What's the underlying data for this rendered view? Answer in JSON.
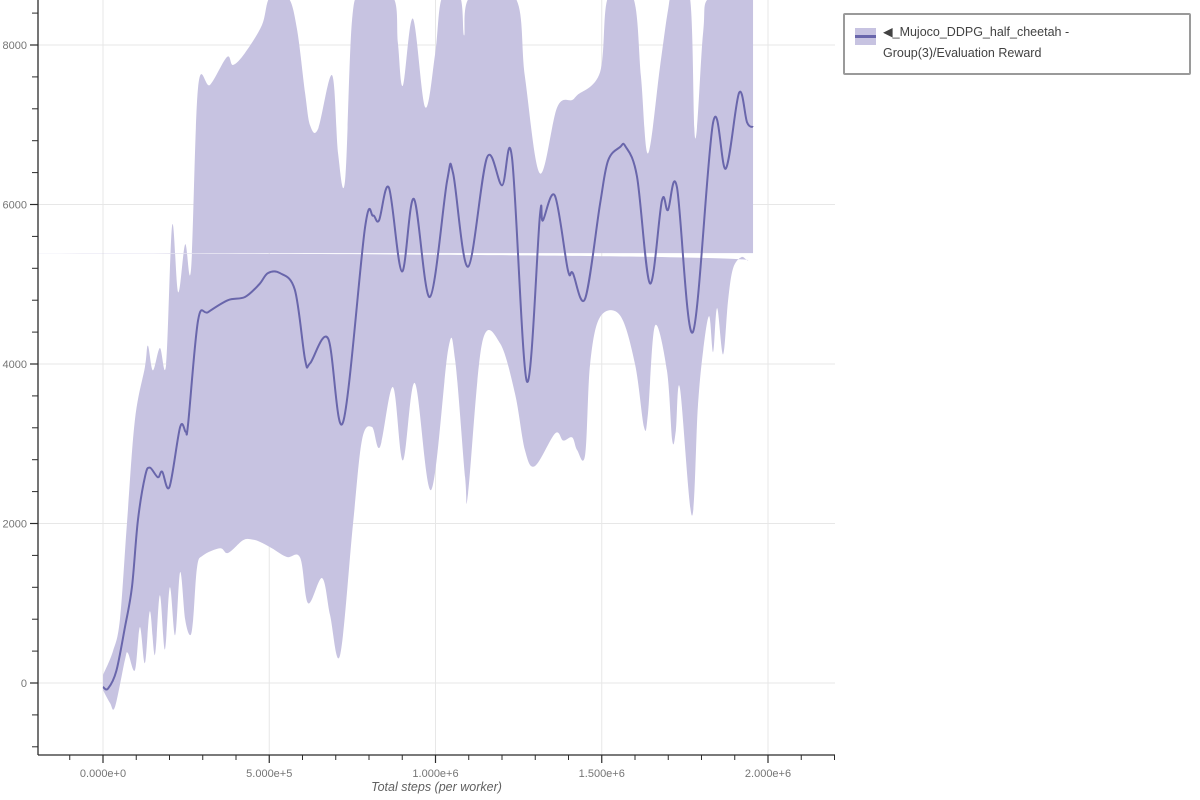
{
  "chart_data": {
    "type": "line",
    "title": "",
    "xlabel": "Total steps (per worker)",
    "ylabel": "",
    "xlim_px_anchor": "x ticks labeled 0 to 2e6",
    "x_ticks": [
      {
        "value": 0,
        "label": "0.000e+0"
      },
      {
        "value": 500000,
        "label": "5.000e+5"
      },
      {
        "value": 1000000,
        "label": "1.000e+6"
      },
      {
        "value": 1500000,
        "label": "1.500e+6"
      },
      {
        "value": 2000000,
        "label": "2.000e+6"
      }
    ],
    "x_minor_tick_step": 100000,
    "y_ticks": [
      {
        "value": 0,
        "label": "0"
      },
      {
        "value": 2000,
        "label": "2000"
      },
      {
        "value": 4000,
        "label": "4000"
      },
      {
        "value": 6000,
        "label": "6000"
      },
      {
        "value": 8000,
        "label": "8000"
      }
    ],
    "y_minor_tick_step": 400,
    "grid": "on",
    "legend_position": "top-right-outside",
    "legend": {
      "marker": "band-with-line",
      "label": "◀_Mujoco_DDPG_half_cheetah - Group(3)/Evaluation Reward"
    },
    "colors": {
      "line": "#6966ab",
      "band": "#c7c3e1",
      "grid": "#e7e7e7",
      "axis": "#2b2b2b",
      "tick_label": "#757575",
      "axis_title": "#616161",
      "legend_text": "#424242",
      "legend_border": "#9a9a9a"
    },
    "series": [
      {
        "name": "◀_Mujoco_DDPG_half_cheetah - Group(3)/Evaluation Reward",
        "mean": [
          [
            0,
            -50
          ],
          [
            15000,
            -70
          ],
          [
            40000,
            150
          ],
          [
            66000,
            700
          ],
          [
            87000,
            1200
          ],
          [
            105000,
            2040
          ],
          [
            127000,
            2600
          ],
          [
            141000,
            2700
          ],
          [
            165000,
            2580
          ],
          [
            178000,
            2650
          ],
          [
            200000,
            2460
          ],
          [
            232000,
            3210
          ],
          [
            249000,
            3150
          ],
          [
            256000,
            3250
          ],
          [
            286000,
            4550
          ],
          [
            316000,
            4650
          ],
          [
            376000,
            4800
          ],
          [
            427000,
            4840
          ],
          [
            470000,
            5000
          ],
          [
            496000,
            5140
          ],
          [
            532000,
            5140
          ],
          [
            577000,
            4930
          ],
          [
            608000,
            4050
          ],
          [
            623000,
            4010
          ],
          [
            677000,
            4320
          ],
          [
            722000,
            3270
          ],
          [
            788000,
            5710
          ],
          [
            812000,
            5860
          ],
          [
            830000,
            5800
          ],
          [
            860000,
            6210
          ],
          [
            899000,
            5160
          ],
          [
            935000,
            6070
          ],
          [
            983000,
            4840
          ],
          [
            1035000,
            6300
          ],
          [
            1053000,
            6390
          ],
          [
            1098000,
            5220
          ],
          [
            1155000,
            6590
          ],
          [
            1200000,
            6240
          ],
          [
            1230000,
            6590
          ],
          [
            1275000,
            3780
          ],
          [
            1314000,
            5860
          ],
          [
            1323000,
            5800
          ],
          [
            1359000,
            6110
          ],
          [
            1398000,
            5180
          ],
          [
            1413000,
            5140
          ],
          [
            1450000,
            4820
          ],
          [
            1495000,
            6010
          ],
          [
            1519000,
            6550
          ],
          [
            1555000,
            6720
          ],
          [
            1571000,
            6730
          ],
          [
            1606000,
            6350
          ],
          [
            1645000,
            5010
          ],
          [
            1681000,
            6050
          ],
          [
            1699000,
            5930
          ],
          [
            1726000,
            6220
          ],
          [
            1774000,
            4400
          ],
          [
            1835000,
            7030
          ],
          [
            1873000,
            6450
          ],
          [
            1913000,
            7400
          ],
          [
            1937000,
            7030
          ],
          [
            1955000,
            6970
          ]
        ],
        "upper": [
          [
            0,
            100
          ],
          [
            30000,
            400
          ],
          [
            51000,
            800
          ],
          [
            72000,
            2000
          ],
          [
            96000,
            3300
          ],
          [
            126000,
            3960
          ],
          [
            135000,
            4230
          ],
          [
            150000,
            3920
          ],
          [
            171000,
            4200
          ],
          [
            190000,
            4000
          ],
          [
            208000,
            5740
          ],
          [
            226000,
            4900
          ],
          [
            247000,
            5500
          ],
          [
            265000,
            5200
          ],
          [
            286000,
            7470
          ],
          [
            322000,
            7500
          ],
          [
            373000,
            7850
          ],
          [
            391000,
            7750
          ],
          [
            427000,
            7900
          ],
          [
            478000,
            8250
          ],
          [
            502000,
            8600
          ],
          [
            556000,
            8600
          ],
          [
            583000,
            8210
          ],
          [
            608000,
            7390
          ],
          [
            623000,
            6990
          ],
          [
            647000,
            6950
          ],
          [
            689000,
            7620
          ],
          [
            707000,
            6640
          ],
          [
            728000,
            6300
          ],
          [
            749000,
            8310
          ],
          [
            779000,
            8600
          ],
          [
            872000,
            8600
          ],
          [
            887000,
            8020
          ],
          [
            902000,
            7490
          ],
          [
            932000,
            8330
          ],
          [
            969000,
            7220
          ],
          [
            999000,
            7890
          ],
          [
            1020000,
            8600
          ],
          [
            1074000,
            8600
          ],
          [
            1086000,
            8120
          ],
          [
            1104000,
            8600
          ],
          [
            1239000,
            8600
          ],
          [
            1269000,
            7600
          ],
          [
            1314000,
            6390
          ],
          [
            1366000,
            7220
          ],
          [
            1411000,
            7310
          ],
          [
            1426000,
            7370
          ],
          [
            1495000,
            7660
          ],
          [
            1519000,
            8600
          ],
          [
            1594000,
            8600
          ],
          [
            1618000,
            7600
          ],
          [
            1639000,
            6640
          ],
          [
            1675000,
            7720
          ],
          [
            1699000,
            8430
          ],
          [
            1712000,
            8600
          ],
          [
            1765000,
            8600
          ],
          [
            1781000,
            6830
          ],
          [
            1805000,
            8160
          ],
          [
            1826000,
            8600
          ],
          [
            1955000,
            8600
          ]
        ],
        "lower": [
          [
            0,
            -90
          ],
          [
            21000,
            -250
          ],
          [
            36000,
            -300
          ],
          [
            66000,
            290
          ],
          [
            75000,
            375
          ],
          [
            96000,
            160
          ],
          [
            111000,
            700
          ],
          [
            126000,
            250
          ],
          [
            141000,
            900
          ],
          [
            156000,
            350
          ],
          [
            171000,
            1100
          ],
          [
            186000,
            420
          ],
          [
            201000,
            1200
          ],
          [
            217000,
            600
          ],
          [
            232000,
            1390
          ],
          [
            247000,
            800
          ],
          [
            262000,
            600
          ],
          [
            271000,
            790
          ],
          [
            283000,
            1455
          ],
          [
            301000,
            1600
          ],
          [
            352000,
            1690
          ],
          [
            376000,
            1630
          ],
          [
            421000,
            1790
          ],
          [
            448000,
            1800
          ],
          [
            472000,
            1770
          ],
          [
            508000,
            1690
          ],
          [
            553000,
            1580
          ],
          [
            593000,
            1570
          ],
          [
            617000,
            1000
          ],
          [
            659000,
            1315
          ],
          [
            683000,
            850
          ],
          [
            713000,
            350
          ],
          [
            752000,
            2000
          ],
          [
            779000,
            3050
          ],
          [
            809000,
            3210
          ],
          [
            833000,
            2960
          ],
          [
            872000,
            3710
          ],
          [
            902000,
            2790
          ],
          [
            938000,
            3760
          ],
          [
            987000,
            2420
          ],
          [
            1038000,
            4180
          ],
          [
            1059000,
            4050
          ],
          [
            1089000,
            2580
          ],
          [
            1098000,
            2380
          ],
          [
            1140000,
            4260
          ],
          [
            1194000,
            4260
          ],
          [
            1239000,
            3630
          ],
          [
            1269000,
            2920
          ],
          [
            1299000,
            2720
          ],
          [
            1360000,
            3130
          ],
          [
            1384000,
            3040
          ],
          [
            1411000,
            3080
          ],
          [
            1426000,
            2920
          ],
          [
            1450000,
            2860
          ],
          [
            1465000,
            4000
          ],
          [
            1495000,
            4590
          ],
          [
            1555000,
            4610
          ],
          [
            1600000,
            4000
          ],
          [
            1627000,
            3210
          ],
          [
            1639000,
            3380
          ],
          [
            1660000,
            4480
          ],
          [
            1696000,
            3920
          ],
          [
            1712000,
            3040
          ],
          [
            1723000,
            3170
          ],
          [
            1735000,
            3700
          ],
          [
            1771000,
            2100
          ],
          [
            1789000,
            3460
          ],
          [
            1805000,
            4170
          ],
          [
            1823000,
            4600
          ],
          [
            1835000,
            4150
          ],
          [
            1847000,
            4700
          ],
          [
            1865000,
            4120
          ],
          [
            1880000,
            4800
          ],
          [
            1895000,
            5200
          ],
          [
            1920000,
            5340
          ],
          [
            1940000,
            5300
          ],
          [
            1955000,
            5390
          ]
        ]
      }
    ]
  }
}
